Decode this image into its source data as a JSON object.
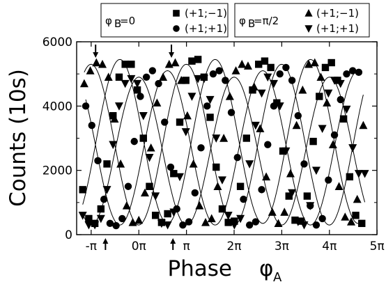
{
  "chart_data": {
    "type": "scatter",
    "title": "",
    "xlabel": "Phase",
    "xlabel_symbol": "φ",
    "xlabel_sub": "A",
    "ylabel": "Counts (10s)",
    "xlim": [
      -4.1,
      15.7
    ],
    "ylim": [
      0,
      6000
    ],
    "x_unit": "radians",
    "x_ticks": [
      {
        "value": -3.1416,
        "label": "-π"
      },
      {
        "value": 0,
        "label": "0π"
      },
      {
        "value": 3.1416,
        "label": "π"
      },
      {
        "value": 6.2832,
        "label": "2π"
      },
      {
        "value": 9.4248,
        "label": "3π"
      },
      {
        "value": 12.5664,
        "label": "4π"
      },
      {
        "value": 15.708,
        "label": "5π"
      }
    ],
    "y_ticks": [
      0,
      2000,
      4000,
      6000
    ],
    "grid": false,
    "legend_placement": "top",
    "legend_groups": [
      {
        "header": "φB=0",
        "header_symbol": "φ",
        "header_sub": "B",
        "header_rest": "=0",
        "entries": [
          {
            "marker": "square",
            "label": "(+1;−1)"
          },
          {
            "marker": "circle",
            "label": "(+1;+1)"
          }
        ]
      },
      {
        "header": "φB=π/2",
        "header_symbol": "φ",
        "header_sub": "B",
        "header_rest": "=π/2",
        "entries": [
          {
            "marker": "triangle-up",
            "label": "(+1;−1)"
          },
          {
            "marker": "triangle-down",
            "label": "(+1;+1)"
          }
        ]
      }
    ],
    "series": [
      {
        "group": "φB=0",
        "label": "(+1;−1)",
        "marker": "square",
        "fit": {
          "offset": 2900,
          "amplitude": 2550,
          "peak_phase": -1.25
        },
        "x": [
          -3.7,
          -3.3,
          -2.9,
          -2.5,
          -2.1,
          -1.7,
          -1.3,
          -0.9,
          -0.5,
          -0.1,
          0.3,
          0.7,
          1.1,
          1.5,
          1.9,
          2.3,
          2.7,
          3.1,
          3.5,
          3.9,
          4.3,
          4.7,
          5.1,
          5.5,
          5.9,
          6.3,
          6.7,
          7.1,
          7.5,
          7.9,
          8.3,
          8.7,
          9.1,
          9.5,
          9.9,
          10.3,
          10.7,
          11.1,
          11.5,
          11.9,
          12.3,
          12.7,
          13.1,
          13.5,
          13.9,
          14.3,
          14.7
        ],
        "y": [
          1400,
          500,
          350,
          800,
          2200,
          3700,
          4900,
          5300,
          5300,
          4500,
          3000,
          1500,
          600,
          380,
          650,
          1900,
          3500,
          4800,
          5400,
          5450,
          4900,
          3650,
          2100,
          800,
          380,
          420,
          1500,
          3000,
          4500,
          5300,
          5400,
          5200,
          4100,
          2600,
          1200,
          450,
          420,
          1200,
          2900,
          4300,
          5200,
          5350,
          4800,
          3600,
          1800,
          600,
          350
        ]
      },
      {
        "group": "φB=0",
        "label": "(+1;+1)",
        "marker": "circle",
        "fit": {
          "offset": 2700,
          "amplitude": 2400,
          "peak_phase": 1.89
        },
        "x": [
          -3.5,
          -3.1,
          -2.7,
          -2.3,
          -1.9,
          -1.5,
          -1.1,
          -0.7,
          -0.3,
          0.1,
          0.5,
          0.9,
          1.3,
          1.7,
          2.1,
          2.5,
          2.9,
          3.3,
          3.7,
          4.1,
          4.5,
          4.9,
          5.3,
          5.7,
          6.1,
          6.5,
          6.9,
          7.3,
          7.7,
          8.1,
          8.5,
          8.9,
          9.3,
          9.7,
          10.1,
          10.5,
          10.9,
          11.3,
          11.7,
          12.1,
          12.5,
          12.9,
          13.3,
          13.7,
          14.1,
          14.5
        ],
        "y": [
          4000,
          3400,
          2300,
          1100,
          350,
          280,
          500,
          1500,
          2900,
          4300,
          4900,
          5100,
          4700,
          3500,
          2100,
          800,
          300,
          400,
          1300,
          2700,
          4000,
          5000,
          5100,
          4800,
          3800,
          2400,
          1100,
          300,
          400,
          1400,
          2800,
          4000,
          5000,
          5200,
          4800,
          3700,
          2200,
          900,
          300,
          500,
          1700,
          3100,
          4200,
          5000,
          5100,
          5050
        ]
      },
      {
        "group": "φB=π/2",
        "label": "(+1;−1)",
        "marker": "triangle-up",
        "fit": {
          "offset": 2800,
          "amplitude": 2500,
          "peak_phase": -3.15
        },
        "x": [
          -3.6,
          -3.2,
          -2.8,
          -2.4,
          -2.0,
          -1.6,
          -1.2,
          -0.8,
          -0.4,
          0.0,
          0.4,
          0.8,
          1.2,
          1.6,
          2.0,
          2.4,
          2.8,
          3.2,
          3.6,
          4.0,
          4.4,
          4.8,
          5.2,
          5.6,
          6.0,
          6.4,
          6.8,
          7.2,
          7.6,
          8.0,
          8.4,
          8.8,
          9.2,
          9.6,
          10.0,
          10.4,
          10.8,
          11.2,
          11.6,
          12.0,
          12.4,
          12.8,
          13.2,
          13.6,
          14.0,
          14.4,
          14.8
        ],
        "y": [
          4700,
          5100,
          5350,
          5300,
          4900,
          3600,
          2200,
          900,
          380,
          450,
          1300,
          2700,
          4100,
          4900,
          5300,
          5350,
          4800,
          3700,
          2200,
          900,
          380,
          500,
          1500,
          3000,
          4300,
          5100,
          5300,
          5250,
          4600,
          3300,
          1800,
          700,
          350,
          700,
          1900,
          3400,
          4500,
          5300,
          5350,
          4900,
          4100,
          2800,
          1500,
          550,
          400,
          1100,
          3400
        ]
      },
      {
        "group": "φB=π/2",
        "label": "(+1;+1)",
        "marker": "triangle-down",
        "fit": {
          "offset": 2600,
          "amplitude": 2300,
          "peak_phase": 0.0
        },
        "x": [
          -3.7,
          -3.3,
          -2.9,
          -2.5,
          -2.1,
          -1.7,
          -1.3,
          -0.9,
          -0.5,
          -0.1,
          0.3,
          0.7,
          1.1,
          1.5,
          1.9,
          2.3,
          2.7,
          3.1,
          3.5,
          3.9,
          4.3,
          4.7,
          5.1,
          5.5,
          5.9,
          6.3,
          6.7,
          7.3,
          7.7,
          8.1,
          8.5,
          8.9,
          9.3,
          9.7,
          10.1,
          10.5,
          10.9,
          11.3,
          11.7,
          12.1,
          12.5,
          12.9,
          13.3,
          13.7,
          14.1,
          14.5,
          14.9
        ],
        "y": [
          600,
          300,
          300,
          500,
          1400,
          2800,
          4000,
          4700,
          4850,
          4700,
          3700,
          2400,
          1200,
          350,
          300,
          700,
          1800,
          3200,
          4300,
          4850,
          4850,
          4200,
          3000,
          1700,
          600,
          300,
          500,
          2200,
          3400,
          4400,
          4900,
          4700,
          4000,
          2600,
          1300,
          400,
          300,
          900,
          2000,
          3300,
          4400,
          4800,
          4700,
          3900,
          2700,
          1900,
          1900
        ]
      }
    ],
    "annotations": [
      {
        "type": "arrow-down",
        "x": -2.85
      },
      {
        "type": "arrow-up",
        "x": -2.2
      },
      {
        "type": "arrow-down",
        "x": 2.15
      },
      {
        "type": "arrow-up",
        "x": 2.25
      }
    ]
  }
}
